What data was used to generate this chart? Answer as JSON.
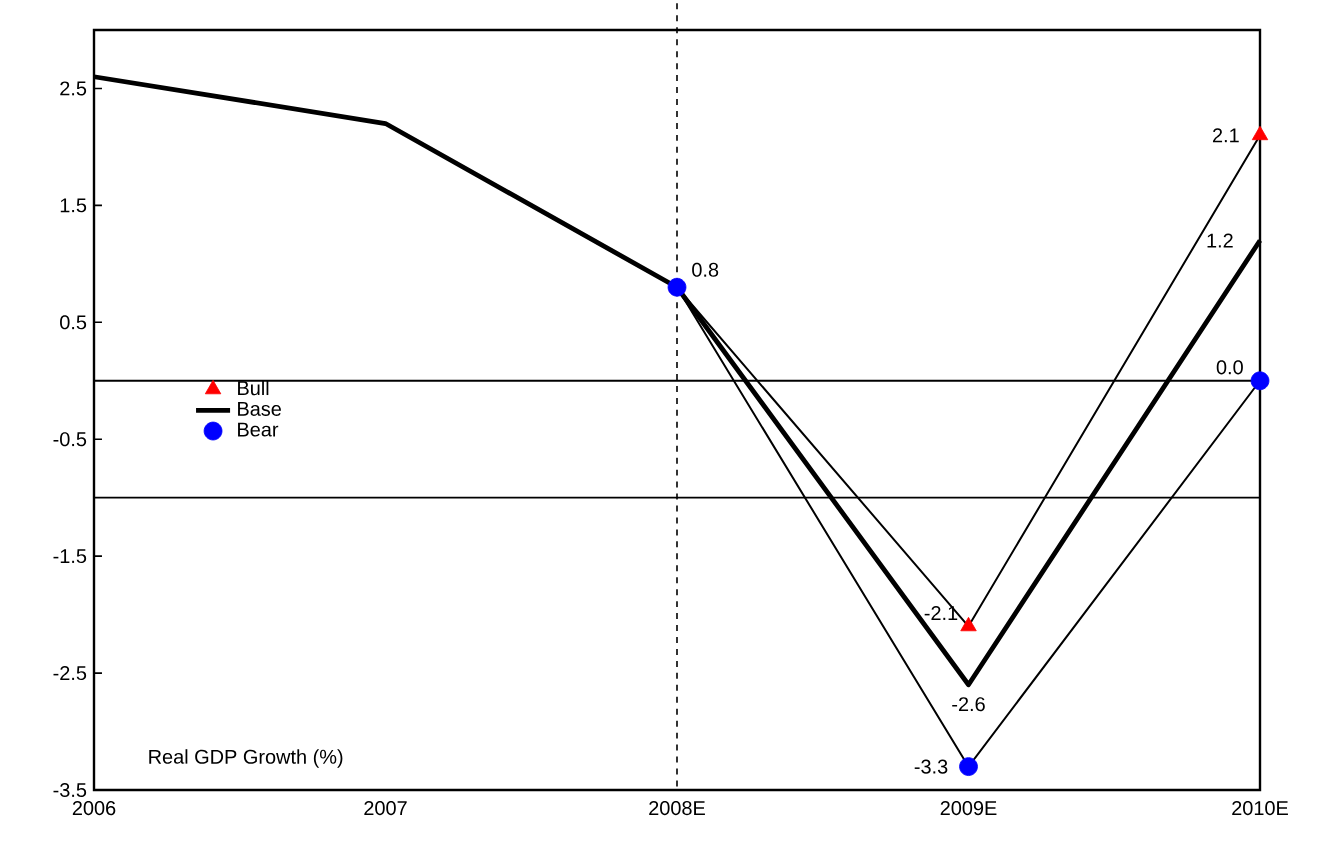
{
  "chart_data": {
    "type": "line",
    "categories": [
      "2006",
      "2007",
      "2008E",
      "2009E",
      "2010E"
    ],
    "series": [
      {
        "name": "Bull",
        "color": "#ff0000",
        "marker": "triangle",
        "values": [
          null,
          null,
          0.8,
          -2.1,
          2.1
        ],
        "value_labels": [
          null,
          null,
          null,
          "-2.1",
          "2.1"
        ]
      },
      {
        "name": "Base",
        "color": "#000000",
        "marker": "none",
        "values": [
          2.6,
          2.2,
          0.8,
          -2.6,
          1.2
        ],
        "value_labels": [
          null,
          null,
          null,
          "-2.6",
          "1.2"
        ]
      },
      {
        "name": "Bear",
        "color": "#0000ff",
        "marker": "circle",
        "values": [
          null,
          null,
          0.8,
          -3.3,
          0.0
        ],
        "value_labels": [
          null,
          null,
          "0.8",
          "-3.3",
          "0.0"
        ]
      }
    ],
    "ylim": [
      -3.5,
      3.0
    ],
    "yticks": [
      2.5,
      1.5,
      0.5,
      -0.5,
      -1.5,
      -2.5,
      -3.5
    ],
    "ref_lines": [
      {
        "axis": "y",
        "value": 0,
        "color": "#000000"
      },
      {
        "axis": "y",
        "value": -1,
        "color": "#000000"
      },
      {
        "axis": "x",
        "value": "2008E",
        "color": "#000000",
        "line_style": "dashed"
      }
    ],
    "legend": "left",
    "annotations": [
      "Real GDP Growth (%)"
    ]
  }
}
